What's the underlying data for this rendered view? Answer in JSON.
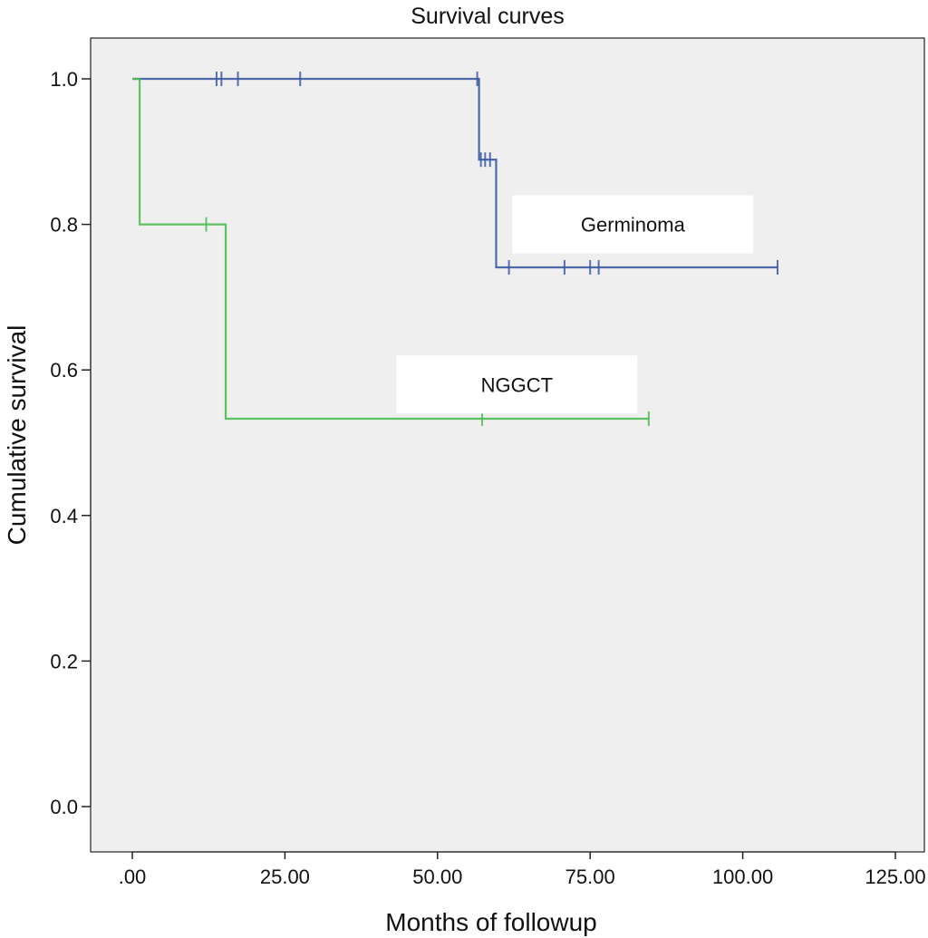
{
  "chart_data": {
    "type": "line",
    "subtype": "kaplan-meier-step",
    "title": "Survival curves",
    "xlabel": "Months of followup",
    "ylabel": "Cumulative survival",
    "xlim": [
      0,
      125
    ],
    "ylim": [
      0,
      1.0
    ],
    "x_ticks": [
      0,
      25,
      50,
      75,
      100,
      125
    ],
    "x_tick_labels": [
      ".00",
      "25.00",
      "50.00",
      "75.00",
      "100.00",
      "125.00"
    ],
    "y_ticks": [
      0,
      0.2,
      0.4,
      0.6,
      0.8,
      1.0
    ],
    "y_tick_labels": [
      "0.0",
      "0.2",
      "0.4",
      "0.6",
      "0.8",
      "1.0"
    ],
    "grid": false,
    "background_color": "#efeff0",
    "series": [
      {
        "name": "Germinoma",
        "color": "#3b5aa3",
        "steps": [
          {
            "x": 0,
            "y": 1.0
          },
          {
            "x": 56.8,
            "y": 0.889
          },
          {
            "x": 59.6,
            "y": 0.741
          }
        ],
        "end_x": 105.7,
        "censored": [
          {
            "x": 13.8,
            "y": 1.0
          },
          {
            "x": 14.6,
            "y": 1.0
          },
          {
            "x": 17.3,
            "y": 1.0
          },
          {
            "x": 27.5,
            "y": 1.0
          },
          {
            "x": 56.5,
            "y": 1.0
          },
          {
            "x": 57.1,
            "y": 0.889
          },
          {
            "x": 57.8,
            "y": 0.889
          },
          {
            "x": 58.6,
            "y": 0.889
          },
          {
            "x": 61.7,
            "y": 0.741
          },
          {
            "x": 70.8,
            "y": 0.741
          },
          {
            "x": 75.0,
            "y": 0.741
          },
          {
            "x": 76.4,
            "y": 0.741
          },
          {
            "x": 105.7,
            "y": 0.741
          }
        ]
      },
      {
        "name": "NGGCT",
        "color": "#4cbc52",
        "steps": [
          {
            "x": 0,
            "y": 1.0
          },
          {
            "x": 1.2,
            "y": 0.8
          },
          {
            "x": 15.3,
            "y": 0.533
          }
        ],
        "end_x": 84.6,
        "censored": [
          {
            "x": 12.1,
            "y": 0.8
          },
          {
            "x": 57.3,
            "y": 0.533
          },
          {
            "x": 84.6,
            "y": 0.533
          }
        ]
      }
    ],
    "annotations": [
      {
        "text": "Germinoma",
        "x": 82,
        "y": 0.8
      },
      {
        "text": "NGGCT",
        "x": 63,
        "y": 0.58
      }
    ]
  }
}
